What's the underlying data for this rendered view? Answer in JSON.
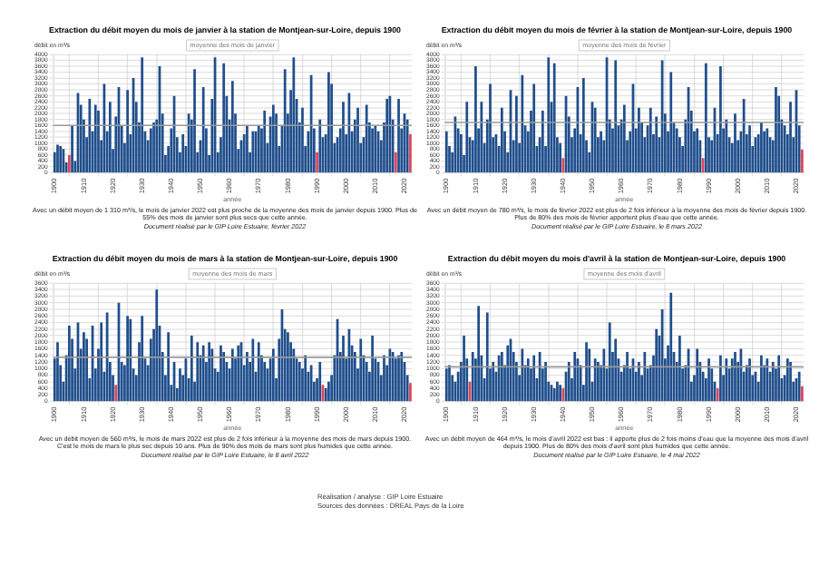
{
  "chart_data": [
    {
      "type": "bar",
      "title": "Extraction du débit moyen du mois de janvier à la station de Montjean-sur-Loire, depuis 1900",
      "xlabel": "année",
      "ylabel": "débit en m³/s",
      "grid": true,
      "legend": false,
      "x": [
        1900,
        1901,
        1902,
        1903,
        1904,
        1905,
        1906,
        1907,
        1908,
        1909,
        1910,
        1911,
        1912,
        1913,
        1914,
        1915,
        1916,
        1917,
        1918,
        1919,
        1920,
        1921,
        1922,
        1923,
        1924,
        1925,
        1926,
        1927,
        1928,
        1929,
        1930,
        1931,
        1932,
        1933,
        1934,
        1935,
        1936,
        1937,
        1938,
        1939,
        1940,
        1941,
        1942,
        1943,
        1944,
        1945,
        1946,
        1947,
        1948,
        1949,
        1950,
        1951,
        1952,
        1953,
        1954,
        1955,
        1956,
        1957,
        1958,
        1959,
        1960,
        1961,
        1962,
        1963,
        1964,
        1965,
        1966,
        1967,
        1968,
        1969,
        1970,
        1971,
        1972,
        1973,
        1974,
        1975,
        1976,
        1977,
        1978,
        1979,
        1980,
        1981,
        1982,
        1983,
        1984,
        1985,
        1986,
        1987,
        1988,
        1989,
        1990,
        1991,
        1992,
        1993,
        1994,
        1995,
        1996,
        1997,
        1998,
        1999,
        2000,
        2001,
        2002,
        2003,
        2004,
        2005,
        2006,
        2007,
        2008,
        2009,
        2010,
        2011,
        2012,
        2013,
        2014,
        2015,
        2016,
        2017,
        2018,
        2019,
        2020,
        2021,
        2022
      ],
      "values": [
        700,
        950,
        900,
        800,
        350,
        600,
        1600,
        400,
        2700,
        2300,
        1800,
        1200,
        2500,
        1400,
        2300,
        2100,
        1100,
        3000,
        1400,
        2400,
        800,
        1900,
        2900,
        1600,
        1000,
        2800,
        1300,
        3200,
        2400,
        1700,
        3900,
        1400,
        1100,
        1500,
        1700,
        1800,
        3600,
        2000,
        600,
        900,
        1500,
        2600,
        1200,
        700,
        1300,
        900,
        2000,
        1800,
        3500,
        700,
        1100,
        2900,
        1500,
        600,
        2500,
        3900,
        700,
        1200,
        3700,
        2600,
        1800,
        3100,
        2000,
        800,
        1100,
        1300,
        1600,
        700,
        1400,
        1400,
        1600,
        1500,
        2100,
        1000,
        1900,
        2300,
        2000,
        900,
        1600,
        3500,
        2000,
        2800,
        3900,
        2500,
        1700,
        2200,
        900,
        1400,
        3300,
        1500,
        700,
        1800,
        1200,
        1300,
        3400,
        3000,
        1000,
        1200,
        1500,
        2400,
        1300,
        2700,
        1400,
        1800,
        2200,
        1000,
        1200,
        2300,
        1700,
        1500,
        1600,
        1400,
        1100,
        1700,
        2500,
        2600,
        1800,
        700,
        2500,
        1500,
        2000,
        1800,
        1310
      ],
      "colors": [
        "#1f4e8c",
        "#1f4e8c",
        "#1f4e8c",
        "#1f4e8c",
        "#1f4e8c",
        "#e0435a",
        "#1f4e8c",
        "#1f4e8c",
        "#1f4e8c",
        "#1f4e8c",
        "#1f4e8c",
        "#1f4e8c",
        "#1f4e8c",
        "#1f4e8c",
        "#1f4e8c",
        "#1f4e8c",
        "#1f4e8c",
        "#1f4e8c",
        "#1f4e8c",
        "#1f4e8c",
        "#1f4e8c",
        "#1f4e8c",
        "#1f4e8c",
        "#1f4e8c",
        "#1f4e8c",
        "#1f4e8c",
        "#1f4e8c",
        "#1f4e8c",
        "#1f4e8c",
        "#1f4e8c",
        "#1f4e8c",
        "#1f4e8c",
        "#1f4e8c",
        "#1f4e8c",
        "#1f4e8c",
        "#1f4e8c",
        "#1f4e8c",
        "#1f4e8c",
        "#1f4e8c",
        "#1f4e8c",
        "#1f4e8c",
        "#1f4e8c",
        "#1f4e8c",
        "#1f4e8c",
        "#1f4e8c",
        "#1f4e8c",
        "#1f4e8c",
        "#1f4e8c",
        "#1f4e8c",
        "#1f4e8c",
        "#1f4e8c",
        "#1f4e8c",
        "#1f4e8c",
        "#1f4e8c",
        "#1f4e8c",
        "#1f4e8c",
        "#1f4e8c",
        "#1f4e8c",
        "#1f4e8c",
        "#1f4e8c",
        "#1f4e8c",
        "#1f4e8c",
        "#1f4e8c",
        "#1f4e8c",
        "#1f4e8c",
        "#1f4e8c",
        "#1f4e8c",
        "#1f4e8c",
        "#1f4e8c",
        "#1f4e8c",
        "#1f4e8c",
        "#1f4e8c",
        "#1f4e8c",
        "#1f4e8c",
        "#1f4e8c",
        "#1f4e8c",
        "#1f4e8c",
        "#1f4e8c",
        "#1f4e8c",
        "#1f4e8c",
        "#1f4e8c",
        "#1f4e8c",
        "#1f4e8c",
        "#1f4e8c",
        "#1f4e8c",
        "#1f4e8c",
        "#1f4e8c",
        "#1f4e8c",
        "#1f4e8c",
        "#1f4e8c",
        "#e0435a",
        "#1f4e8c",
        "#1f4e8c",
        "#1f4e8c",
        "#1f4e8c",
        "#1f4e8c",
        "#1f4e8c",
        "#1f4e8c",
        "#1f4e8c",
        "#1f4e8c",
        "#1f4e8c",
        "#1f4e8c",
        "#1f4e8c",
        "#1f4e8c",
        "#1f4e8c",
        "#1f4e8c",
        "#1f4e8c",
        "#1f4e8c",
        "#1f4e8c",
        "#1f4e8c",
        "#1f4e8c",
        "#1f4e8c",
        "#1f4e8c",
        "#1f4e8c",
        "#1f4e8c",
        "#1f4e8c",
        "#1f4e8c",
        "#e0435a",
        "#1f4e8c",
        "#1f4e8c",
        "#1f4e8c",
        "#1f4e8c",
        "#e0435a"
      ],
      "xlim": [
        1899.5,
        2022.5
      ],
      "xticks": [
        1900,
        1910,
        1920,
        1930,
        1940,
        1950,
        1960,
        1970,
        1980,
        1990,
        2000,
        2010,
        2020
      ],
      "ylim": [
        0,
        4000
      ],
      "yticks": [
        0,
        200,
        400,
        600,
        800,
        1000,
        1200,
        1400,
        1600,
        1800,
        2000,
        2200,
        2400,
        2600,
        2800,
        3000,
        3200,
        3400,
        3600,
        3800,
        4000
      ],
      "ref_lines": [
        {
          "axis": "y",
          "value": 1600,
          "label": "moyenne des mois de janvier",
          "color": "#9a9a9a"
        }
      ],
      "annotations": [
        "Avec un débit moyen de 1 310 m³/s, le mois de janvier 2022 est plus proche de la moyenne des mois de janvier depuis 1900. Plus de 55% des mois de janvier sont plus secs que cette année.",
        "Document réalisé par le GIP Loire Estuaire, février 2022"
      ]
    },
    {
      "type": "bar",
      "title": "Extraction du débit moyen du mois de février à la station de Montjean-sur-Loire, depuis 1900",
      "xlabel": "année",
      "ylabel": "débit en m³/s",
      "grid": true,
      "legend": false,
      "x": [
        1900,
        1901,
        1902,
        1903,
        1904,
        1905,
        1906,
        1907,
        1908,
        1909,
        1910,
        1911,
        1912,
        1913,
        1914,
        1915,
        1916,
        1917,
        1918,
        1919,
        1920,
        1921,
        1922,
        1923,
        1924,
        1925,
        1926,
        1927,
        1928,
        1929,
        1930,
        1931,
        1932,
        1933,
        1934,
        1935,
        1936,
        1937,
        1938,
        1939,
        1940,
        1941,
        1942,
        1943,
        1944,
        1945,
        1946,
        1947,
        1948,
        1949,
        1950,
        1951,
        1952,
        1953,
        1954,
        1955,
        1956,
        1957,
        1958,
        1959,
        1960,
        1961,
        1962,
        1963,
        1964,
        1965,
        1966,
        1967,
        1968,
        1969,
        1970,
        1971,
        1972,
        1973,
        1974,
        1975,
        1976,
        1977,
        1978,
        1979,
        1980,
        1981,
        1982,
        1983,
        1984,
        1985,
        1986,
        1987,
        1988,
        1989,
        1990,
        1991,
        1992,
        1993,
        1994,
        1995,
        1996,
        1997,
        1998,
        1999,
        2000,
        2001,
        2002,
        2003,
        2004,
        2005,
        2006,
        2007,
        2008,
        2009,
        2010,
        2011,
        2012,
        2013,
        2014,
        2015,
        2016,
        2017,
        2018,
        2019,
        2020,
        2021,
        2022
      ],
      "values": [
        1400,
        900,
        700,
        1900,
        1500,
        1300,
        600,
        2400,
        1200,
        1100,
        3600,
        1500,
        2400,
        1000,
        1800,
        3000,
        1200,
        1300,
        900,
        2200,
        1400,
        700,
        2800,
        1100,
        2600,
        1000,
        3300,
        1600,
        1400,
        2100,
        3000,
        900,
        1200,
        2100,
        900,
        3900,
        2400,
        3700,
        1200,
        1000,
        500,
        2600,
        1900,
        1200,
        1500,
        2900,
        1300,
        3200,
        1100,
        700,
        2400,
        2200,
        1200,
        1400,
        1100,
        3900,
        1800,
        1500,
        3800,
        1600,
        1800,
        2300,
        1100,
        1400,
        3000,
        1500,
        2200,
        1700,
        1200,
        1600,
        2200,
        1300,
        1900,
        1200,
        3800,
        2000,
        1400,
        3400,
        1700,
        1500,
        1200,
        900,
        1800,
        2900,
        2100,
        1400,
        1500,
        1100,
        500,
        3700,
        1200,
        1100,
        2200,
        1300,
        3600,
        1500,
        1800,
        1200,
        1000,
        2000,
        1100,
        1400,
        2500,
        1300,
        1600,
        900,
        1200,
        1300,
        1700,
        1400,
        1500,
        1200,
        1100,
        2900,
        2600,
        1800,
        1600,
        1300,
        2400,
        1200,
        2800,
        1600,
        780
      ],
      "colors": [
        "#1f4e8c",
        "#1f4e8c",
        "#1f4e8c",
        "#1f4e8c",
        "#1f4e8c",
        "#1f4e8c",
        "#1f4e8c",
        "#1f4e8c",
        "#1f4e8c",
        "#1f4e8c",
        "#1f4e8c",
        "#1f4e8c",
        "#1f4e8c",
        "#1f4e8c",
        "#1f4e8c",
        "#1f4e8c",
        "#1f4e8c",
        "#1f4e8c",
        "#1f4e8c",
        "#1f4e8c",
        "#1f4e8c",
        "#1f4e8c",
        "#1f4e8c",
        "#1f4e8c",
        "#1f4e8c",
        "#1f4e8c",
        "#1f4e8c",
        "#1f4e8c",
        "#1f4e8c",
        "#1f4e8c",
        "#1f4e8c",
        "#1f4e8c",
        "#1f4e8c",
        "#1f4e8c",
        "#1f4e8c",
        "#1f4e8c",
        "#1f4e8c",
        "#1f4e8c",
        "#1f4e8c",
        "#1f4e8c",
        "#e0435a",
        "#1f4e8c",
        "#1f4e8c",
        "#1f4e8c",
        "#1f4e8c",
        "#1f4e8c",
        "#1f4e8c",
        "#1f4e8c",
        "#1f4e8c",
        "#1f4e8c",
        "#1f4e8c",
        "#1f4e8c",
        "#1f4e8c",
        "#1f4e8c",
        "#1f4e8c",
        "#1f4e8c",
        "#1f4e8c",
        "#1f4e8c",
        "#1f4e8c",
        "#1f4e8c",
        "#1f4e8c",
        "#1f4e8c",
        "#1f4e8c",
        "#1f4e8c",
        "#1f4e8c",
        "#1f4e8c",
        "#1f4e8c",
        "#1f4e8c",
        "#1f4e8c",
        "#1f4e8c",
        "#1f4e8c",
        "#1f4e8c",
        "#1f4e8c",
        "#1f4e8c",
        "#1f4e8c",
        "#1f4e8c",
        "#1f4e8c",
        "#1f4e8c",
        "#1f4e8c",
        "#1f4e8c",
        "#1f4e8c",
        "#1f4e8c",
        "#1f4e8c",
        "#1f4e8c",
        "#1f4e8c",
        "#1f4e8c",
        "#1f4e8c",
        "#1f4e8c",
        "#e0435a",
        "#1f4e8c",
        "#1f4e8c",
        "#1f4e8c",
        "#1f4e8c",
        "#1f4e8c",
        "#1f4e8c",
        "#1f4e8c",
        "#1f4e8c",
        "#1f4e8c",
        "#1f4e8c",
        "#1f4e8c",
        "#1f4e8c",
        "#1f4e8c",
        "#1f4e8c",
        "#1f4e8c",
        "#1f4e8c",
        "#1f4e8c",
        "#1f4e8c",
        "#1f4e8c",
        "#1f4e8c",
        "#1f4e8c",
        "#1f4e8c",
        "#1f4e8c",
        "#1f4e8c",
        "#1f4e8c",
        "#1f4e8c",
        "#1f4e8c",
        "#1f4e8c",
        "#1f4e8c",
        "#1f4e8c",
        "#1f4e8c",
        "#1f4e8c",
        "#1f4e8c",
        "#e0435a"
      ],
      "xlim": [
        1899.5,
        2022.5
      ],
      "xticks": [
        1900,
        1910,
        1920,
        1930,
        1940,
        1950,
        1960,
        1970,
        1980,
        1990,
        2000,
        2010,
        2020
      ],
      "ylim": [
        0,
        4000
      ],
      "yticks": [
        0,
        200,
        400,
        600,
        800,
        1000,
        1200,
        1400,
        1600,
        1800,
        2000,
        2200,
        2400,
        2600,
        2800,
        3000,
        3200,
        3400,
        3600,
        3800,
        4000
      ],
      "ref_lines": [
        {
          "axis": "y",
          "value": 1700,
          "label": "moyenne des mois de février",
          "color": "#9a9a9a"
        }
      ],
      "annotations": [
        "Avec un débit moyen de 780 m³/s, le mois de février 2022 est plus de 2 fois inférieur à la moyenne des mois de février depuis 1900. Plus de 80% des mois de février apportent plus d'eau que cette année.",
        "Document réalisé par le GIP Loire Estuaire, le 8 mars 2022"
      ]
    },
    {
      "type": "bar",
      "title": "Extraction du débit moyen du mois de mars à la station de Montjean-sur-Loire, depuis 1900",
      "xlabel": "année",
      "ylabel": "débit en m³/s",
      "grid": true,
      "legend": false,
      "x": [
        1900,
        1901,
        1902,
        1903,
        1904,
        1905,
        1906,
        1907,
        1908,
        1909,
        1910,
        1911,
        1912,
        1913,
        1914,
        1915,
        1916,
        1917,
        1918,
        1919,
        1920,
        1921,
        1922,
        1923,
        1924,
        1925,
        1926,
        1927,
        1928,
        1929,
        1930,
        1931,
        1932,
        1933,
        1934,
        1935,
        1936,
        1937,
        1938,
        1939,
        1940,
        1941,
        1942,
        1943,
        1944,
        1945,
        1946,
        1947,
        1948,
        1949,
        1950,
        1951,
        1952,
        1953,
        1954,
        1955,
        1956,
        1957,
        1958,
        1959,
        1960,
        1961,
        1962,
        1963,
        1964,
        1965,
        1966,
        1967,
        1968,
        1969,
        1970,
        1971,
        1972,
        1973,
        1974,
        1975,
        1976,
        1977,
        1978,
        1979,
        1980,
        1981,
        1982,
        1983,
        1984,
        1985,
        1986,
        1987,
        1988,
        1989,
        1990,
        1991,
        1992,
        1993,
        1994,
        1995,
        1996,
        1997,
        1998,
        1999,
        2000,
        2001,
        2002,
        2003,
        2004,
        2005,
        2006,
        2007,
        2008,
        2009,
        2010,
        2011,
        2012,
        2013,
        2014,
        2015,
        2016,
        2017,
        2018,
        2019,
        2020,
        2021,
        2022
      ],
      "values": [
        1300,
        1800,
        1100,
        600,
        1400,
        2300,
        1900,
        1000,
        2400,
        1600,
        2100,
        1900,
        700,
        2300,
        1000,
        1600,
        2400,
        900,
        2700,
        1200,
        800,
        500,
        3000,
        1200,
        1100,
        2600,
        2500,
        1000,
        800,
        1800,
        2600,
        1300,
        1100,
        1900,
        2200,
        3400,
        2300,
        1500,
        800,
        2100,
        500,
        1200,
        400,
        1000,
        800,
        1300,
        700,
        2000,
        600,
        1800,
        1400,
        1700,
        1200,
        1800,
        1600,
        1000,
        900,
        1700,
        1500,
        1200,
        1000,
        1600,
        1300,
        1700,
        1800,
        1100,
        1500,
        1200,
        1900,
        900,
        1800,
        1400,
        1200,
        1000,
        1300,
        1600,
        700,
        1900,
        2800,
        2200,
        2100,
        1800,
        1600,
        1300,
        1200,
        1000,
        1400,
        900,
        1100,
        600,
        700,
        1200,
        500,
        400,
        600,
        800,
        1400,
        2500,
        1500,
        2000,
        1300,
        2200,
        1700,
        1500,
        1000,
        1900,
        1400,
        1200,
        900,
        2000,
        1300,
        1200,
        800,
        1400,
        1100,
        1600,
        1500,
        1300,
        1400,
        1500,
        1200,
        800,
        560
      ],
      "colors": [
        "#1f4e8c",
        "#1f4e8c",
        "#1f4e8c",
        "#1f4e8c",
        "#1f4e8c",
        "#1f4e8c",
        "#1f4e8c",
        "#1f4e8c",
        "#1f4e8c",
        "#1f4e8c",
        "#1f4e8c",
        "#1f4e8c",
        "#1f4e8c",
        "#1f4e8c",
        "#1f4e8c",
        "#1f4e8c",
        "#1f4e8c",
        "#1f4e8c",
        "#1f4e8c",
        "#1f4e8c",
        "#1f4e8c",
        "#e0435a",
        "#1f4e8c",
        "#1f4e8c",
        "#1f4e8c",
        "#1f4e8c",
        "#1f4e8c",
        "#1f4e8c",
        "#1f4e8c",
        "#1f4e8c",
        "#1f4e8c",
        "#1f4e8c",
        "#1f4e8c",
        "#1f4e8c",
        "#1f4e8c",
        "#1f4e8c",
        "#1f4e8c",
        "#1f4e8c",
        "#1f4e8c",
        "#1f4e8c",
        "#1f4e8c",
        "#1f4e8c",
        "#1f4e8c",
        "#1f4e8c",
        "#1f4e8c",
        "#1f4e8c",
        "#1f4e8c",
        "#1f4e8c",
        "#1f4e8c",
        "#1f4e8c",
        "#1f4e8c",
        "#1f4e8c",
        "#1f4e8c",
        "#1f4e8c",
        "#1f4e8c",
        "#1f4e8c",
        "#1f4e8c",
        "#1f4e8c",
        "#1f4e8c",
        "#1f4e8c",
        "#1f4e8c",
        "#1f4e8c",
        "#1f4e8c",
        "#1f4e8c",
        "#1f4e8c",
        "#1f4e8c",
        "#1f4e8c",
        "#1f4e8c",
        "#1f4e8c",
        "#1f4e8c",
        "#1f4e8c",
        "#1f4e8c",
        "#1f4e8c",
        "#1f4e8c",
        "#1f4e8c",
        "#1f4e8c",
        "#1f4e8c",
        "#1f4e8c",
        "#1f4e8c",
        "#1f4e8c",
        "#1f4e8c",
        "#1f4e8c",
        "#1f4e8c",
        "#1f4e8c",
        "#1f4e8c",
        "#1f4e8c",
        "#1f4e8c",
        "#1f4e8c",
        "#1f4e8c",
        "#1f4e8c",
        "#1f4e8c",
        "#1f4e8c",
        "#e0435a",
        "#1f4e8c",
        "#1f4e8c",
        "#1f4e8c",
        "#1f4e8c",
        "#1f4e8c",
        "#1f4e8c",
        "#1f4e8c",
        "#1f4e8c",
        "#1f4e8c",
        "#1f4e8c",
        "#1f4e8c",
        "#1f4e8c",
        "#1f4e8c",
        "#1f4e8c",
        "#1f4e8c",
        "#1f4e8c",
        "#1f4e8c",
        "#1f4e8c",
        "#1f4e8c",
        "#1f4e8c",
        "#1f4e8c",
        "#1f4e8c",
        "#1f4e8c",
        "#1f4e8c",
        "#1f4e8c",
        "#1f4e8c",
        "#1f4e8c",
        "#1f4e8c",
        "#1f4e8c",
        "#e0435a"
      ],
      "xlim": [
        1899.5,
        2022.5
      ],
      "xticks": [
        1900,
        1910,
        1920,
        1930,
        1940,
        1950,
        1960,
        1970,
        1980,
        1990,
        2000,
        2010,
        2020
      ],
      "ylim": [
        0,
        3600
      ],
      "yticks": [
        0,
        200,
        400,
        600,
        800,
        1000,
        1200,
        1400,
        1600,
        1800,
        2000,
        2200,
        2400,
        2600,
        2800,
        3000,
        3200,
        3400,
        3600
      ],
      "ref_lines": [
        {
          "axis": "y",
          "value": 1340,
          "label": "moyenne des mois de mars",
          "color": "#9a9a9a"
        }
      ],
      "annotations": [
        "Avec un débit moyen de 560 m³/s, le mois de mars 2022 est plus de 2 fois inférieur à la moyenne des mois de mars depuis 1900. C'est le mois de mars le plus sec depuis 10 ans. Plus de 90% des mois de mars sont plus humides que cette année.",
        "Document réalisé par le GIP Loire Estuaire, le 8 avril 2022"
      ]
    },
    {
      "type": "bar",
      "title": "Extraction du débit moyen du mois d'avril à la station de Montjean-sur-Loire, depuis 1900",
      "xlabel": "année",
      "ylabel": "débit en m³/s",
      "grid": true,
      "legend": false,
      "x": [
        1900,
        1901,
        1902,
        1903,
        1904,
        1905,
        1906,
        1907,
        1908,
        1909,
        1910,
        1911,
        1912,
        1913,
        1914,
        1915,
        1916,
        1917,
        1918,
        1919,
        1920,
        1921,
        1922,
        1923,
        1924,
        1925,
        1926,
        1927,
        1928,
        1929,
        1930,
        1931,
        1932,
        1933,
        1934,
        1935,
        1936,
        1937,
        1938,
        1939,
        1940,
        1941,
        1942,
        1943,
        1944,
        1945,
        1946,
        1947,
        1948,
        1949,
        1950,
        1951,
        1952,
        1953,
        1954,
        1955,
        1956,
        1957,
        1958,
        1959,
        1960,
        1961,
        1962,
        1963,
        1964,
        1965,
        1966,
        1967,
        1968,
        1969,
        1970,
        1971,
        1972,
        1973,
        1974,
        1975,
        1976,
        1977,
        1978,
        1979,
        1980,
        1981,
        1982,
        1983,
        1984,
        1985,
        1986,
        1987,
        1988,
        1989,
        1990,
        1991,
        1992,
        1993,
        1994,
        1995,
        1996,
        1997,
        1998,
        1999,
        2000,
        2001,
        2002,
        2003,
        2004,
        2005,
        2006,
        2007,
        2008,
        2009,
        2010,
        2011,
        2012,
        2013,
        2014,
        2015,
        2016,
        2017,
        2018,
        2019,
        2020,
        2021,
        2022
      ],
      "values": [
        1000,
        1100,
        800,
        600,
        900,
        1200,
        2000,
        1300,
        600,
        1500,
        1300,
        2900,
        1400,
        700,
        2700,
        1000,
        1200,
        900,
        1400,
        1500,
        1100,
        1700,
        1900,
        1500,
        1200,
        800,
        1600,
        1100,
        1300,
        1000,
        1400,
        700,
        1500,
        1000,
        1200,
        600,
        500,
        400,
        600,
        500,
        400,
        900,
        1200,
        700,
        1500,
        1300,
        1100,
        500,
        1800,
        1600,
        600,
        1300,
        1200,
        1100,
        1600,
        1000,
        2400,
        1500,
        1900,
        1300,
        900,
        1100,
        1500,
        1000,
        1300,
        900,
        1200,
        800,
        1500,
        1000,
        1100,
        1400,
        2200,
        2000,
        2800,
        1300,
        1700,
        3300,
        1500,
        1200,
        2000,
        1000,
        1100,
        1600,
        600,
        800,
        1600,
        1200,
        900,
        700,
        1300,
        1000,
        600,
        400,
        1400,
        800,
        1300,
        1000,
        1300,
        1500,
        1200,
        1600,
        900,
        1100,
        1300,
        800,
        900,
        600,
        1400,
        1100,
        1300,
        900,
        1200,
        1000,
        1400,
        700,
        800,
        1300,
        1200,
        600,
        700,
        900,
        464
      ],
      "colors": [
        "#1f4e8c",
        "#1f4e8c",
        "#1f4e8c",
        "#1f4e8c",
        "#1f4e8c",
        "#1f4e8c",
        "#1f4e8c",
        "#1f4e8c",
        "#e0435a",
        "#1f4e8c",
        "#1f4e8c",
        "#1f4e8c",
        "#1f4e8c",
        "#1f4e8c",
        "#1f4e8c",
        "#1f4e8c",
        "#1f4e8c",
        "#1f4e8c",
        "#1f4e8c",
        "#1f4e8c",
        "#1f4e8c",
        "#1f4e8c",
        "#1f4e8c",
        "#1f4e8c",
        "#1f4e8c",
        "#1f4e8c",
        "#1f4e8c",
        "#1f4e8c",
        "#1f4e8c",
        "#1f4e8c",
        "#1f4e8c",
        "#1f4e8c",
        "#1f4e8c",
        "#1f4e8c",
        "#1f4e8c",
        "#1f4e8c",
        "#1f4e8c",
        "#1f4e8c",
        "#1f4e8c",
        "#1f4e8c",
        "#e0435a",
        "#1f4e8c",
        "#1f4e8c",
        "#1f4e8c",
        "#1f4e8c",
        "#1f4e8c",
        "#1f4e8c",
        "#1f4e8c",
        "#1f4e8c",
        "#1f4e8c",
        "#1f4e8c",
        "#1f4e8c",
        "#1f4e8c",
        "#1f4e8c",
        "#1f4e8c",
        "#1f4e8c",
        "#1f4e8c",
        "#1f4e8c",
        "#1f4e8c",
        "#1f4e8c",
        "#1f4e8c",
        "#1f4e8c",
        "#1f4e8c",
        "#1f4e8c",
        "#1f4e8c",
        "#1f4e8c",
        "#1f4e8c",
        "#1f4e8c",
        "#1f4e8c",
        "#1f4e8c",
        "#1f4e8c",
        "#1f4e8c",
        "#1f4e8c",
        "#1f4e8c",
        "#1f4e8c",
        "#1f4e8c",
        "#1f4e8c",
        "#1f4e8c",
        "#1f4e8c",
        "#1f4e8c",
        "#1f4e8c",
        "#1f4e8c",
        "#1f4e8c",
        "#1f4e8c",
        "#1f4e8c",
        "#1f4e8c",
        "#1f4e8c",
        "#1f4e8c",
        "#1f4e8c",
        "#1f4e8c",
        "#1f4e8c",
        "#1f4e8c",
        "#1f4e8c",
        "#e0435a",
        "#1f4e8c",
        "#1f4e8c",
        "#1f4e8c",
        "#1f4e8c",
        "#1f4e8c",
        "#1f4e8c",
        "#1f4e8c",
        "#1f4e8c",
        "#1f4e8c",
        "#1f4e8c",
        "#1f4e8c",
        "#1f4e8c",
        "#1f4e8c",
        "#1f4e8c",
        "#1f4e8c",
        "#1f4e8c",
        "#1f4e8c",
        "#1f4e8c",
        "#1f4e8c",
        "#1f4e8c",
        "#1f4e8c",
        "#1f4e8c",
        "#1f4e8c",
        "#1f4e8c",
        "#1f4e8c",
        "#1f4e8c",
        "#1f4e8c",
        "#1f4e8c",
        "#e0435a"
      ],
      "xlim": [
        1899.5,
        2022.5
      ],
      "xticks": [
        1900,
        1910,
        1920,
        1930,
        1940,
        1950,
        1960,
        1970,
        1980,
        1990,
        2000,
        2010,
        2020
      ],
      "ylim": [
        0,
        3600
      ],
      "yticks": [
        0,
        200,
        400,
        600,
        800,
        1000,
        1200,
        1400,
        1600,
        1800,
        2000,
        2200,
        2400,
        2600,
        2800,
        3000,
        3200,
        3400,
        3600
      ],
      "ref_lines": [
        {
          "axis": "y",
          "value": 1050,
          "label": "moyenne des mois d'avril",
          "color": "#9a9a9a"
        }
      ],
      "annotations": [
        "Avec un débit moyen de 464 m³/s, le mois d'avril 2022 est bas : il apporte plus de 2 fois moins d'eau que la moyenne des mois d'avril depuis 1900. Plus de 80% des mois d'avril sont plus humides que cette année.",
        "Document réalisé par le GIP Loire Estuaire, le 4 mai 2022",
        "Réalisation / analyse : GIP Loire Estuaire",
        "Sources des données : DREAL Pays de la Loire"
      ]
    }
  ]
}
